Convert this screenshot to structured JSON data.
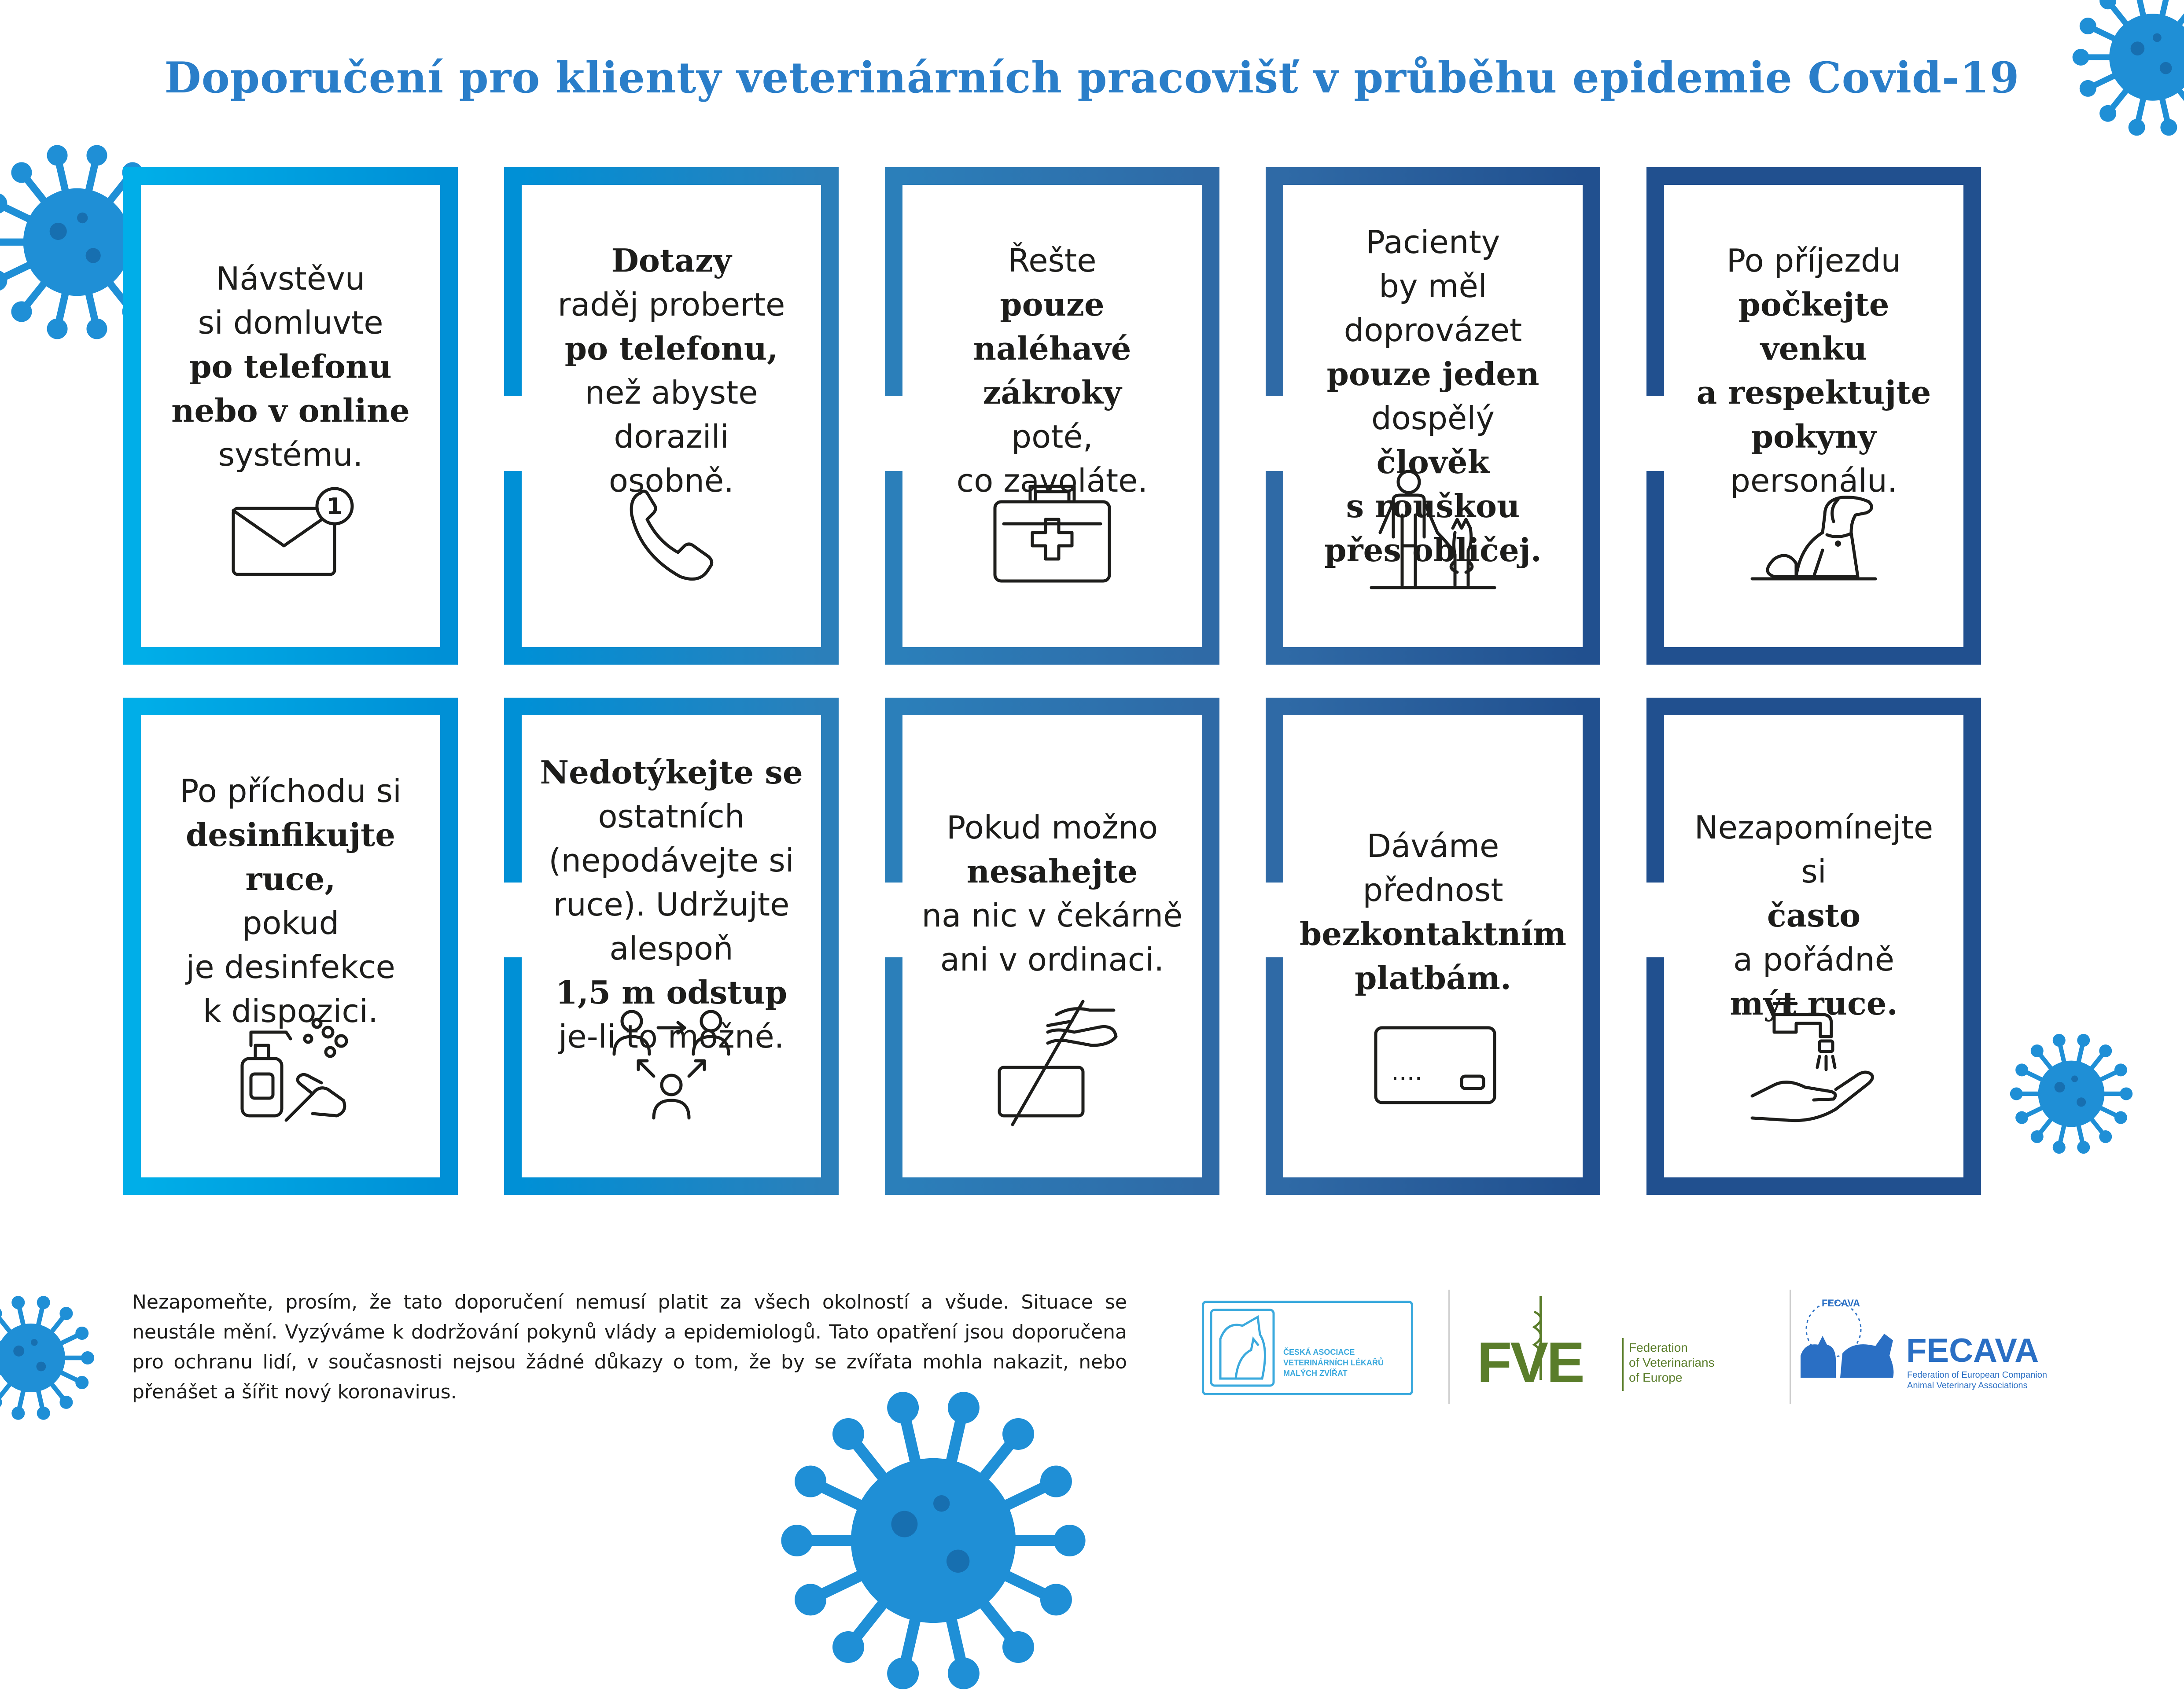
{
  "title": "Doporučení pro klienty veterinárních pracovišť v průběhu epidemie Covid-19",
  "colors": {
    "c1": "#00aee8",
    "c2": "#0090d6",
    "c3": "#2b7fba",
    "c4": "#2f6aa6",
    "c5": "#21508f",
    "title": "#2a7ec9",
    "virus": "#1f8fd6"
  },
  "cards": [
    {
      "lines": [
        {
          "t": "Návstěvu",
          "b": false
        },
        {
          "t": "si domluvte",
          "b": false
        },
        {
          "t": "po telefonu",
          "b": true
        },
        {
          "t": "nebo v online",
          "b": true
        },
        {
          "t": "systému.",
          "b": false
        }
      ],
      "icon": "envelope-icon",
      "badge": "1"
    },
    {
      "lines": [
        {
          "t": "Dotazy",
          "b": true
        },
        {
          "t": "raděj proberte",
          "b": false
        },
        {
          "t": "po telefonu,",
          "b": true
        },
        {
          "t": "než abyste",
          "b": false
        },
        {
          "t": "dorazili",
          "b": false
        },
        {
          "t": "osobně.",
          "b": false
        }
      ],
      "icon": "phone-icon"
    },
    {
      "lines": [
        {
          "t": "Řešte",
          "b": false
        },
        {
          "t": "pouze",
          "b": true
        },
        {
          "t": "naléhavé",
          "b": true
        },
        {
          "t": "zákroky",
          "b": true
        },
        {
          "t": "poté,",
          "b": false
        },
        {
          "t": "co zavoláte.",
          "b": false
        }
      ],
      "icon": "first-aid-kit-icon"
    },
    {
      "lines": [
        {
          "t": "Pacienty",
          "b": false
        },
        {
          "t": "by měl doprovázet",
          "b": false
        },
        {
          "t": "pouze jeden",
          "b": true
        },
        {
          "t": "dospělý",
          "b": false
        },
        {
          "t": "člověk",
          "b": true
        },
        {
          "t": "s rouškou",
          "b": true
        },
        {
          "t": "přes obličej.",
          "b": true
        }
      ],
      "icon": "person-with-dog-icon"
    },
    {
      "lines": [
        {
          "t": "Po příjezdu",
          "b": false
        },
        {
          "t": "počkejte",
          "b": true
        },
        {
          "t": "venku",
          "b": true
        },
        {
          "t": "a respektujte",
          "b": true
        },
        {
          "t": "pokyny",
          "b": true
        },
        {
          "t": "personálu.",
          "b": false
        }
      ],
      "icon": "sitting-dog-icon"
    },
    {
      "lines": [
        {
          "t": "Po příchodu si",
          "b": false
        },
        {
          "t": "desinfikujte",
          "b": true
        },
        {
          "t": "ruce,",
          "b": true
        },
        {
          "t": "pokud",
          "b": false
        },
        {
          "t": "je desinfekce",
          "b": false
        },
        {
          "t": "k dispozici.",
          "b": false
        }
      ],
      "icon": "hand-sanitizer-icon"
    },
    {
      "lines": [
        {
          "t": "Nedotýkejte se",
          "b": true
        },
        {
          "t": "ostatních",
          "b": false
        },
        {
          "t": "(nepodávejte si",
          "b": false
        },
        {
          "t": "ruce). Udržujte",
          "b": false
        },
        {
          "t": "alespoň",
          "b": false
        },
        {
          "t": "1,5 m odstup",
          "b": true
        },
        {
          "t": "je-li to možné.",
          "b": false
        }
      ],
      "icon": "distance-people-icon"
    },
    {
      "lines": [
        {
          "t": "Pokud možno",
          "b": false
        },
        {
          "t": "nesahejte",
          "b": true
        },
        {
          "t": "na nic v čekárně",
          "b": false
        },
        {
          "t": "ani v ordinaci.",
          "b": false
        }
      ],
      "icon": "no-touch-icon"
    },
    {
      "lines": [
        {
          "t": "Dáváme přednost",
          "b": false
        },
        {
          "t": "bezkontaktním",
          "b": true
        },
        {
          "t": "platbám.",
          "b": true
        }
      ],
      "icon": "credit-card-icon",
      "card_dots": "····"
    },
    {
      "lines": [
        {
          "t": "Nezapomínejte si",
          "b": false
        },
        {
          "t": "často",
          "b": true
        },
        {
          "t": "a pořádně",
          "b": false
        },
        {
          "t": "mýt ruce.",
          "b": true
        }
      ],
      "icon": "hand-washing-icon"
    }
  ],
  "footer": {
    "text": "Nezapomeňte, prosím, že tato doporučení nemusí platit za všech okolností a všude. Situace se neustále mění. Vyzýváme k dodržování pokynů vlády a epidemiologů. Tato opatření jsou doporučena pro ochranu lidí, v současnosti nejsou žádné důkazy o tom, že by se zvířata mohla nakazit, nebo přenášet a šířit nový koronavirus.",
    "logo1": {
      "l1": "ČESKÁ ASOCIACE",
      "l2": "VETERINÁRNÍCH LÉKAŘŮ",
      "l3": "MALÝCH ZVÍŘAT"
    },
    "logo2": {
      "mark": "FVE",
      "l1": "Federation",
      "l2": "of Veterinarians",
      "l3": "of Europe"
    },
    "logo3": {
      "mark": "FECAVA",
      "l1": "Federation of European Companion",
      "l2": "Animal Veterinary Associations",
      "ring": "FECAVA"
    }
  }
}
